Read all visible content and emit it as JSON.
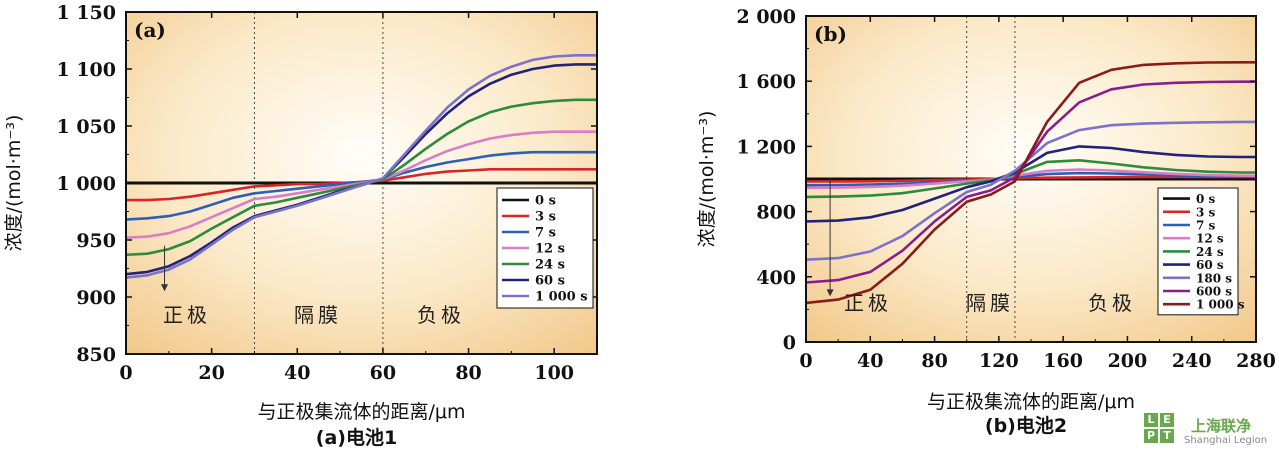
{
  "chart_data": [
    {
      "type": "line",
      "panel_label": "(a)",
      "caption": "(a)电池1",
      "xlabel": "与正极集流体的距离/μm",
      "ylabel": "浓度/(mol·m⁻³)",
      "xlim": [
        0,
        110
      ],
      "ylim": [
        850,
        1150
      ],
      "xticks": [
        0,
        20,
        40,
        60,
        80,
        100
      ],
      "xtick_labels": [
        "0",
        "20",
        "40",
        "60",
        "80",
        "100"
      ],
      "yticks": [
        850,
        900,
        950,
        1000,
        1050,
        1100,
        1150
      ],
      "ytick_labels": [
        "850",
        "900",
        "950",
        "1 000",
        "1 050",
        "1 100",
        "1 150"
      ],
      "region_boundaries": [
        30,
        60
      ],
      "region_labels": [
        "正极",
        "隔膜",
        "负极"
      ],
      "arrow": {
        "x": 9,
        "from": 945,
        "to": 905
      },
      "legend_position": "right",
      "x": [
        0,
        5,
        10,
        15,
        20,
        25,
        30,
        35,
        40,
        45,
        50,
        55,
        60,
        65,
        70,
        75,
        80,
        85,
        90,
        95,
        100,
        105,
        110
      ],
      "series": [
        {
          "name": "0 s",
          "color": "#111111",
          "values": [
            1000,
            1000,
            1000,
            1000,
            1000,
            1000,
            1000,
            1000,
            1000,
            1000,
            1000,
            1000,
            1000,
            1000,
            1000,
            1000,
            1000,
            1000,
            1000,
            1000,
            1000,
            1000,
            1000
          ]
        },
        {
          "name": "3 s",
          "color": "#d62728",
          "values": [
            985,
            985,
            986,
            988,
            991,
            994,
            997,
            998,
            999,
            999,
            1000,
            1001,
            1002,
            1005,
            1008,
            1010,
            1011,
            1012,
            1012,
            1012,
            1012,
            1012,
            1012
          ]
        },
        {
          "name": "7 s",
          "color": "#2e5fb5",
          "values": [
            968,
            969,
            971,
            975,
            981,
            987,
            991,
            993,
            995,
            997,
            999,
            1001,
            1003,
            1009,
            1014,
            1018,
            1021,
            1024,
            1026,
            1027,
            1027,
            1027,
            1027
          ]
        },
        {
          "name": "12 s",
          "color": "#d97dc7",
          "values": [
            952,
            953,
            956,
            962,
            970,
            978,
            986,
            988,
            991,
            994,
            997,
            1000,
            1003,
            1011,
            1020,
            1028,
            1034,
            1039,
            1042,
            1044,
            1045,
            1045,
            1045
          ]
        },
        {
          "name": "24 s",
          "color": "#2e8b3a",
          "values": [
            937,
            938,
            942,
            949,
            960,
            970,
            980,
            983,
            987,
            991,
            995,
            999,
            1003,
            1016,
            1030,
            1043,
            1054,
            1062,
            1067,
            1070,
            1072,
            1073,
            1073
          ]
        },
        {
          "name": "60 s",
          "color": "#22227a",
          "values": [
            920,
            922,
            927,
            936,
            948,
            961,
            971,
            976,
            981,
            987,
            993,
            998,
            1004,
            1023,
            1043,
            1061,
            1076,
            1087,
            1095,
            1100,
            1103,
            1104,
            1104
          ]
        },
        {
          "name": "1 000 s",
          "color": "#7b72c9",
          "values": [
            917,
            919,
            924,
            933,
            946,
            959,
            970,
            975,
            980,
            986,
            992,
            998,
            1004,
            1025,
            1046,
            1066,
            1082,
            1094,
            1102,
            1108,
            1111,
            1112,
            1112
          ]
        }
      ]
    },
    {
      "type": "line",
      "panel_label": "(b)",
      "caption": "(b)电池2",
      "xlabel": "与正极集流体的距离/μm",
      "ylabel": "浓度/(mol·m⁻³)",
      "xlim": [
        0,
        280
      ],
      "ylim": [
        0,
        2000
      ],
      "xticks": [
        0,
        40,
        80,
        120,
        160,
        200,
        240,
        280
      ],
      "xtick_labels": [
        "0",
        "40",
        "80",
        "120",
        "160",
        "200",
        "240",
        "280"
      ],
      "yticks": [
        0,
        400,
        800,
        1200,
        1600,
        2000
      ],
      "ytick_labels": [
        "0",
        "400",
        "800",
        "1 200",
        "1 600",
        "2 000"
      ],
      "region_boundaries": [
        100,
        130
      ],
      "region_labels": [
        "正极",
        "隔膜",
        "负极"
      ],
      "arrow": {
        "x": 15,
        "from": 1000,
        "to": 280
      },
      "legend_position": "right",
      "x": [
        0,
        20,
        40,
        60,
        80,
        100,
        115,
        130,
        150,
        170,
        190,
        210,
        230,
        250,
        270,
        280
      ],
      "series": [
        {
          "name": "0 s",
          "color": "#111111",
          "values": [
            1000,
            1000,
            1000,
            1000,
            1000,
            1000,
            1000,
            1000,
            1000,
            1000,
            1000,
            1000,
            1000,
            1000,
            1000,
            1000
          ]
        },
        {
          "name": "3 s",
          "color": "#d62728",
          "values": [
            985,
            985,
            986,
            989,
            993,
            997,
            1000,
            1004,
            1008,
            1010,
            1011,
            1012,
            1012,
            1012,
            1012,
            1012
          ]
        },
        {
          "name": "7 s",
          "color": "#2e5fb5",
          "values": [
            962,
            963,
            966,
            971,
            980,
            988,
            995,
            1012,
            1030,
            1036,
            1034,
            1028,
            1022,
            1018,
            1015,
            1015
          ]
        },
        {
          "name": "12 s",
          "color": "#d97dc7",
          "values": [
            946,
            947,
            951,
            959,
            972,
            986,
            996,
            1020,
            1050,
            1058,
            1052,
            1041,
            1031,
            1024,
            1020,
            1020
          ]
        },
        {
          "name": "24 s",
          "color": "#2e8b3a",
          "values": [
            890,
            892,
            898,
            913,
            942,
            972,
            990,
            1030,
            1105,
            1115,
            1095,
            1072,
            1055,
            1045,
            1040,
            1040
          ]
        },
        {
          "name": "60 s",
          "color": "#22227a",
          "values": [
            740,
            745,
            765,
            810,
            880,
            950,
            985,
            1040,
            1160,
            1200,
            1190,
            1165,
            1148,
            1138,
            1135,
            1135
          ]
        },
        {
          "name": "180 s",
          "color": "#7b72c9",
          "values": [
            505,
            515,
            555,
            650,
            790,
            920,
            965,
            1050,
            1220,
            1300,
            1330,
            1340,
            1345,
            1348,
            1350,
            1350
          ]
        },
        {
          "name": "600 s",
          "color": "#8b1d8b",
          "values": [
            365,
            380,
            430,
            560,
            740,
            890,
            930,
            1010,
            1290,
            1470,
            1550,
            1580,
            1590,
            1595,
            1597,
            1597
          ]
        },
        {
          "name": "1 000 s",
          "color": "#8b1a1a",
          "values": [
            240,
            260,
            320,
            480,
            690,
            860,
            905,
            985,
            1350,
            1590,
            1670,
            1700,
            1710,
            1715,
            1716,
            1716
          ]
        }
      ]
    }
  ],
  "watermark": {
    "text_cn": "上海联净",
    "text_en": "Shanghai Legion",
    "letters": [
      "L",
      "E",
      "P",
      "T"
    ]
  }
}
